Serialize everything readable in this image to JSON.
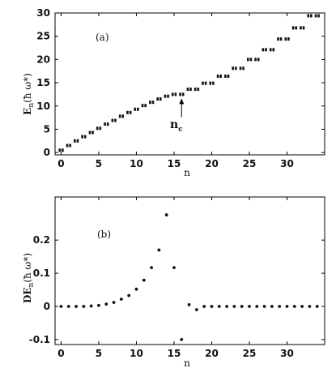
{
  "chart_data": [
    {
      "type": "scatter",
      "panel_label": "(a)",
      "xlabel": "n",
      "ylabel_main": "E",
      "ylabel_sub": "n",
      "ylabel_unit": "(ħ ω*)",
      "annotation_main": "n",
      "annotation_sub": "c",
      "annotation_x": 16,
      "xlim": [
        -0.8,
        35
      ],
      "ylim": [
        -0.5,
        30
      ],
      "xticks": [
        0,
        5,
        10,
        15,
        20,
        25,
        30
      ],
      "yticks": [
        0,
        5,
        10,
        15,
        20,
        25,
        30
      ],
      "marker": "pairs",
      "x": [
        0,
        1,
        2,
        3,
        4,
        5,
        6,
        7,
        8,
        9,
        10,
        11,
        12,
        13,
        14,
        15,
        16,
        17,
        18,
        19,
        20,
        21,
        22,
        23,
        24,
        25,
        26,
        27,
        28,
        29,
        30,
        31,
        32,
        33,
        34
      ],
      "y": [
        0.5,
        1.5,
        2.5,
        3.4,
        4.3,
        5.2,
        6.1,
        6.9,
        7.8,
        8.6,
        9.3,
        10.1,
        10.8,
        11.5,
        12.1,
        12.5,
        12.5,
        13.6,
        13.6,
        14.9,
        14.9,
        16.4,
        16.4,
        18.1,
        18.1,
        20.0,
        20.0,
        22.1,
        22.1,
        24.4,
        24.4,
        26.8,
        26.8,
        29.4,
        29.4
      ]
    },
    {
      "type": "scatter",
      "panel_label": "(b)",
      "xlabel": "n",
      "ylabel_main": "DE",
      "ylabel_sub": "n",
      "ylabel_unit": "(ħ ω*)",
      "xlim": [
        -0.8,
        35
      ],
      "ylim": [
        -0.115,
        0.33
      ],
      "xticks": [
        0,
        5,
        10,
        15,
        20,
        25,
        30
      ],
      "yticks": [
        -0.1,
        0,
        0.1,
        0.2
      ],
      "ytick_labels": [
        "-0.1",
        "0",
        "0.1",
        "0.2"
      ],
      "x": [
        0,
        1,
        2,
        3,
        4,
        5,
        6,
        7,
        8,
        9,
        10,
        11,
        12,
        13,
        14,
        15,
        16,
        17,
        18,
        19,
        20,
        21,
        22,
        23,
        24,
        25,
        26,
        27,
        28,
        29,
        30,
        31,
        32,
        33,
        34
      ],
      "y": [
        0.0,
        0.0,
        0.0,
        0.0,
        0.001,
        0.003,
        0.007,
        0.012,
        0.022,
        0.033,
        0.052,
        0.079,
        0.117,
        0.17,
        0.276,
        0.117,
        -0.1,
        0.005,
        -0.01,
        0,
        0,
        0,
        0,
        0,
        0,
        0,
        0,
        0,
        0,
        0,
        0,
        0,
        0,
        0,
        0
      ]
    }
  ]
}
